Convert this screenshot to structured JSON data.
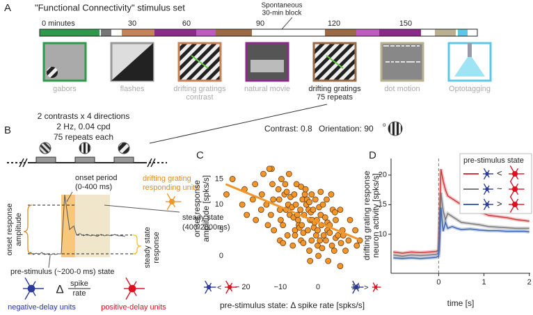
{
  "panel_a": {
    "label": "A",
    "title": "\"Functional Connectivity\" stimulus set",
    "timeline_ticks": [
      "0 minutes",
      "30",
      "60",
      "90",
      "120",
      "150"
    ],
    "annotation": [
      "Spontaneous",
      "30-min block"
    ],
    "stimuli": [
      [
        "gabors"
      ],
      [
        "flashes"
      ],
      [
        "drifting gratings",
        "contrast"
      ],
      [
        "natural movie"
      ],
      [
        "drifting gratings",
        "75 repeats"
      ],
      [
        "dot motion"
      ],
      [
        "Optotagging"
      ]
    ]
  },
  "panel_b": {
    "label": "B",
    "params": [
      "2 contrasts x 4 directions",
      "2 Hz, 0.04 cpd",
      "75 repeats each"
    ],
    "onset_period": [
      "onset period",
      "(0-400 ms)"
    ],
    "responding_units": [
      "drifting grating",
      "responding units"
    ],
    "steady_state": [
      "steady state",
      "(400-2000ms)"
    ],
    "onset_amplitude": [
      "onset response",
      "amplitude"
    ],
    "steady_response": [
      "steady state",
      "response"
    ],
    "pre_stimulus": "pre-stimulus (~200-0 ms) state",
    "delta": "Δ",
    "spike": "spike",
    "rate": "rate",
    "negative_units": "negative-delay units",
    "positive_units": "positive-delay units"
  },
  "condition": {
    "contrast": "Contrast: 0.8",
    "orientation": "Orientation: 90",
    "degree": "o"
  },
  "chart_data": [
    {
      "type": "scatter",
      "label": "C",
      "xlabel": "pre-stimulus state: Δ spike rate [spks/s]",
      "ylabel": [
        "onset response",
        "amplitude [spks/s]"
      ],
      "xaxis_notes": [
        "<",
        ">"
      ],
      "color": "#f0962a",
      "x": [
        -24.3,
        -22.7,
        -20.1,
        -19.5,
        -18.9,
        -17.3,
        -16.7,
        -15.1,
        -14.5,
        -14.9,
        -13.3,
        -13.7,
        -12.1,
        -12.5,
        -11.9,
        -12.3,
        -11.7,
        -10.1,
        -10.5,
        -9.9,
        -10.3,
        -9.7,
        -10.1,
        -8.5,
        -8.9,
        -9.3,
        -8.7,
        -8.1,
        -7.5,
        -7.9,
        -8.3,
        -7.7,
        -6.1,
        -6.5,
        -6.9,
        -7.3,
        -6.7,
        -5.1,
        -5.5,
        -5.9,
        -6.3,
        -5.7,
        -6.1,
        -4.5,
        -4.9,
        -5.3,
        -4.7,
        -4.1,
        -4.5,
        -3.9,
        -4.3,
        -3.7,
        -3.1,
        -3.5,
        -3.9,
        -2.3,
        -2.7,
        -2.1,
        -2.5,
        -2.9,
        -3.3,
        -1.7,
        -1.1,
        -1.5,
        -1.9,
        -2.3,
        -1.7,
        -0.1,
        -0.5,
        -0.9,
        -1.3,
        -0.7,
        0.1,
        0.5,
        -0.1,
        -0.3,
        0.3,
        0.7,
        1.1,
        1.5,
        0.9,
        0.7,
        1.3,
        2.7,
        2.1,
        2.5,
        1.9,
        2.3,
        3.7,
        3.1,
        2.5,
        3.9,
        4.3,
        4.7,
        3.1,
        4.5,
        5.9,
        5.3,
        4.7,
        6.1,
        6.5,
        5.9,
        7.3,
        6.7,
        8.1,
        8.5,
        9.9,
        10.3,
        11.1,
        -16.5,
        -12.9,
        -9.3,
        -2.1,
        3.5
      ],
      "values": [
        12,
        15,
        10,
        13,
        8,
        11,
        14,
        9,
        16,
        12,
        6,
        10,
        14,
        8,
        11,
        17,
        5,
        9,
        13,
        7,
        11,
        15,
        3,
        9,
        12,
        6,
        14,
        4,
        8,
        10,
        12.5,
        16,
        5,
        7.5,
        9.5,
        11.5,
        2,
        6,
        8,
        10,
        12,
        14,
        4,
        3,
        5.5,
        7,
        9,
        11,
        13.5,
        2.5,
        6,
        8,
        10,
        12,
        4.5,
        1,
        5,
        7,
        9,
        11,
        13,
        3,
        5.5,
        7,
        8.5,
        10.5,
        12,
        2,
        4,
        6.5,
        9,
        11,
        0,
        3,
        5,
        7,
        9.5,
        12.5,
        1.5,
        4,
        6,
        8,
        10,
        -1,
        3,
        5,
        7.5,
        11,
        2,
        4.5,
        6.5,
        9,
        1,
        3.5,
        6,
        8.5,
        -2,
        4,
        7,
        2.5,
        5,
        9,
        1,
        4,
        3,
        7,
        5,
        2,
        3,
        7,
        17,
        2.5,
        -1,
        12
      ],
      "fit": {
        "x": [
          -24.5,
          11.5
        ],
        "values": [
          14,
          3
        ]
      },
      "xlim": [
        -29,
        12
      ],
      "ylim": [
        -3,
        19
      ],
      "xticks": [
        {
          "value": -20,
          "label": "− 20"
        },
        {
          "value": -10,
          "label": "−10"
        },
        0,
        10
      ],
      "yticks": [
        0,
        5,
        10,
        15
      ]
    },
    {
      "type": "line",
      "label": "D",
      "xlabel": "time [s]",
      "ylabel": [
        "drifting grating response",
        "neuron activity [spks/s]"
      ],
      "legend_title": "pre-stimulus state",
      "x": [
        -1,
        -0.8,
        -0.6,
        -0.4,
        -0.2,
        -0.05,
        0,
        0.05,
        0.1,
        0.15,
        0.2,
        0.3,
        0.4,
        0.5,
        0.7,
        0.9,
        1.1,
        1.3,
        1.5,
        1.7,
        1.9,
        2
      ],
      "series": [
        {
          "name": "<",
          "color": "#d0393b",
          "values": [
            7,
            6.8,
            7,
            6.9,
            7,
            7.1,
            7.3,
            21,
            19,
            17.5,
            16.5,
            16,
            15.5,
            15,
            14,
            13.8,
            13.2,
            13,
            12.8,
            12.5,
            12.3,
            12.2
          ]
        },
        {
          "name": "~",
          "color": "#7a7a7a",
          "values": [
            6.5,
            6.3,
            6.5,
            6.4,
            6.5,
            6.6,
            6.8,
            17,
            14,
            12.5,
            13.5,
            13,
            12.5,
            12,
            11.8,
            11.6,
            11.3,
            11.2,
            11.1,
            11,
            11,
            11
          ]
        },
        {
          "name": ">",
          "color": "#3f66b0",
          "values": [
            6,
            5.9,
            6,
            5.9,
            6,
            6.1,
            6.3,
            14.5,
            10.5,
            12,
            11,
            11.3,
            11,
            10.8,
            10.9,
            10.7,
            10.6,
            10.6,
            10.5,
            10.5,
            10.5,
            10.4
          ]
        }
      ],
      "xlim": [
        -1.05,
        2.02
      ],
      "ylim": [
        3.4,
        22.8
      ],
      "xticks": [
        0,
        1,
        2
      ],
      "yticks": [
        10,
        15,
        20
      ]
    }
  ]
}
